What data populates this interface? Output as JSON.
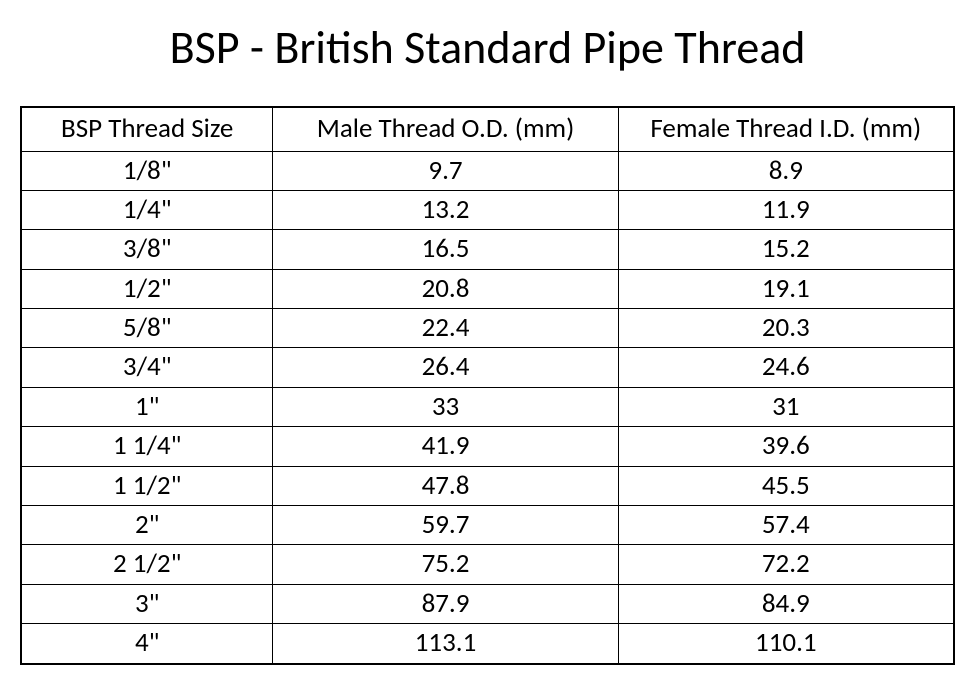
{
  "title": "BSP - British Standard Pipe Thread",
  "table": {
    "type": "table",
    "background_color": "#ffffff",
    "border_color": "#000000",
    "text_color": "#000000",
    "title_fontsize": 46,
    "header_fontsize": 27,
    "cell_fontsize": 27,
    "font_family": "Calibri",
    "outer_border_width": 2,
    "inner_border_width": 1,
    "column_widths_pct": [
      27,
      37,
      36
    ],
    "columns": [
      "BSP Thread Size",
      "Male Thread O.D. (mm)",
      "Female Thread I.D. (mm)"
    ],
    "rows": [
      [
        "1/8\"",
        "9.7",
        "8.9"
      ],
      [
        "1/4\"",
        "13.2",
        "11.9"
      ],
      [
        "3/8\"",
        "16.5",
        "15.2"
      ],
      [
        "1/2\"",
        "20.8",
        "19.1"
      ],
      [
        "5/8\"",
        "22.4",
        "20.3"
      ],
      [
        "3/4\"",
        "26.4",
        "24.6"
      ],
      [
        "1\"",
        "33",
        "31"
      ],
      [
        "1 1/4\"",
        "41.9",
        "39.6"
      ],
      [
        "1 1/2\"",
        "47.8",
        "45.5"
      ],
      [
        "2\"",
        "59.7",
        "57.4"
      ],
      [
        "2 1/2\"",
        "75.2",
        "72.2"
      ],
      [
        "3\"",
        "87.9",
        "84.9"
      ],
      [
        "4\"",
        "113.1",
        "110.1"
      ]
    ]
  }
}
